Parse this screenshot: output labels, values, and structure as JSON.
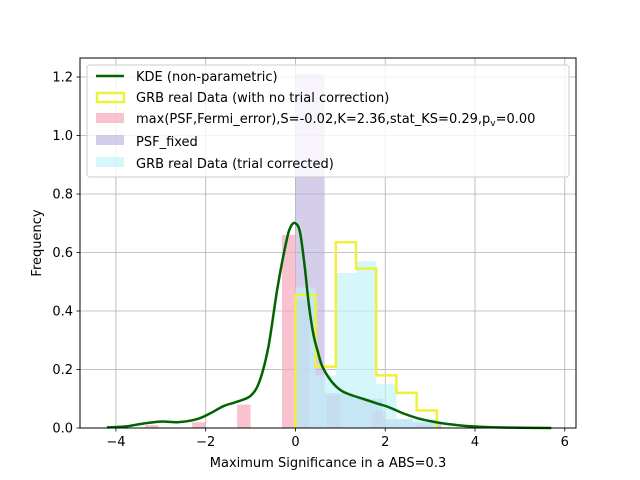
{
  "chart_data": {
    "type": "bar",
    "xlabel": "Maximum Significance in a ABS=0.3",
    "ylabel": "Frequency",
    "xlim": [
      -4.8,
      6.25
    ],
    "ylim": [
      0,
      1.265
    ],
    "x_ticks": [
      -4,
      -2,
      0,
      2,
      4,
      6
    ],
    "y_ticks": [
      0.0,
      0.2,
      0.4,
      0.6,
      0.8,
      1.0,
      1.2
    ],
    "grid": true,
    "legend_position": "top-left",
    "legend": [
      {
        "key": "kde",
        "label": "KDE (non-parametric)"
      },
      {
        "key": "grb_step",
        "label": "GRB real Data (with no trial correction)"
      },
      {
        "key": "max_psf",
        "label_main": "max(PSF,Fermi_error),S=-0.02,K=2.36,stat_KS=0.29,p",
        "label_sub": "v",
        "label_tail": "=0.00"
      },
      {
        "key": "psf_fixed",
        "label": "PSF_fixed"
      },
      {
        "key": "grb_trial",
        "label": "GRB real Data (trial corrected)"
      }
    ],
    "series": [
      {
        "key": "max_psf",
        "type": "bar",
        "color": "#f4a3b4",
        "opacity": 0.65,
        "bars": [
          {
            "x0": -3.35,
            "x1": -3.05,
            "y": 0.01
          },
          {
            "x0": -2.3,
            "x1": -2.0,
            "y": 0.02
          },
          {
            "x0": -1.3,
            "x1": -1.0,
            "y": 0.08
          },
          {
            "x0": -0.3,
            "x1": 0.0,
            "y": 0.66
          },
          {
            "x0": 0.0,
            "x1": 0.3,
            "y": 0.44
          },
          {
            "x0": 0.7,
            "x1": 1.0,
            "y": 0.11
          },
          {
            "x0": 1.7,
            "x1": 2.0,
            "y": 0.06
          },
          {
            "x0": 2.7,
            "x1": 3.0,
            "y": 0.01
          }
        ]
      },
      {
        "key": "psf_fixed",
        "type": "bar",
        "color": "#b7aedc",
        "opacity": 0.6,
        "bars": [
          {
            "x0": 0.0,
            "x1": 0.65,
            "y": 1.21
          },
          {
            "x0": 0.65,
            "x1": 1.3,
            "y": 0.12
          },
          {
            "x0": 1.3,
            "x1": 1.95,
            "y": 0.1
          },
          {
            "x0": 1.95,
            "x1": 2.6,
            "y": 0.03
          },
          {
            "x0": 2.6,
            "x1": 3.25,
            "y": 0.02
          }
        ]
      },
      {
        "key": "grb_trial",
        "type": "bar",
        "color": "#bff2fb",
        "opacity": 0.65,
        "bars": [
          {
            "x0": 0.0,
            "x1": 0.45,
            "y": 0.48
          },
          {
            "x0": 0.45,
            "x1": 0.9,
            "y": 0.18
          },
          {
            "x0": 0.9,
            "x1": 1.35,
            "y": 0.53
          },
          {
            "x0": 1.35,
            "x1": 1.8,
            "y": 0.57
          },
          {
            "x0": 1.8,
            "x1": 2.25,
            "y": 0.15
          },
          {
            "x0": 2.25,
            "x1": 2.7,
            "y": 0.03
          },
          {
            "x0": 2.7,
            "x1": 3.15,
            "y": 0.03
          }
        ]
      },
      {
        "key": "grb_step",
        "type": "step",
        "color": "#eef03a",
        "edges": [
          0.0,
          0.45,
          0.9,
          1.35,
          1.8,
          2.25,
          2.7,
          3.15
        ],
        "values": [
          0.455,
          0.21,
          0.635,
          0.545,
          0.18,
          0.12,
          0.06
        ]
      },
      {
        "key": "kde",
        "type": "line",
        "color": "#006400",
        "x": [
          -4.2,
          -3.8,
          -3.4,
          -3.0,
          -2.6,
          -2.2,
          -1.9,
          -1.6,
          -1.3,
          -1.0,
          -0.8,
          -0.6,
          -0.4,
          -0.2,
          -0.1,
          0.0,
          0.1,
          0.2,
          0.3,
          0.4,
          0.5,
          0.6,
          0.8,
          1.0,
          1.2,
          1.5,
          1.8,
          2.1,
          2.4,
          2.8,
          3.2,
          3.6,
          4.0,
          4.5,
          5.0,
          5.7
        ],
        "y": [
          0.002,
          0.005,
          0.015,
          0.022,
          0.02,
          0.03,
          0.05,
          0.075,
          0.09,
          0.11,
          0.16,
          0.28,
          0.48,
          0.64,
          0.69,
          0.7,
          0.67,
          0.56,
          0.42,
          0.32,
          0.26,
          0.21,
          0.16,
          0.13,
          0.115,
          0.1,
          0.085,
          0.07,
          0.05,
          0.03,
          0.018,
          0.01,
          0.005,
          0.002,
          0.001,
          0.0
        ]
      }
    ]
  }
}
